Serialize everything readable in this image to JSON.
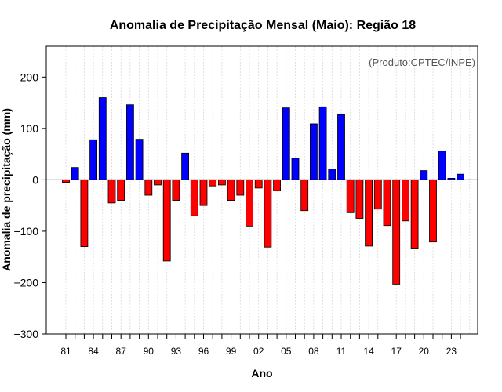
{
  "chart_data": {
    "type": "bar",
    "title": "Anomalia de Precipitação Mensal (Maio): Região 18",
    "xlabel": "Ano",
    "ylabel": "Anomalia de precipitação (mm)",
    "credit": "(Produto:CPTEC/INPE)",
    "ylim": [
      -300,
      260
    ],
    "yticks": [
      {
        "value": -300,
        "label": "−300"
      },
      {
        "value": -200,
        "label": "−200"
      },
      {
        "value": -100,
        "label": "−100"
      },
      {
        "value": 0,
        "label": "0"
      },
      {
        "value": 100,
        "label": "100"
      },
      {
        "value": 200,
        "label": "200"
      }
    ],
    "xticks": [
      {
        "year": 1981,
        "label": "81"
      },
      {
        "year": 1984,
        "label": "84"
      },
      {
        "year": 1987,
        "label": "87"
      },
      {
        "year": 1990,
        "label": "90"
      },
      {
        "year": 1993,
        "label": "93"
      },
      {
        "year": 1996,
        "label": "96"
      },
      {
        "year": 1999,
        "label": "99"
      },
      {
        "year": 2002,
        "label": "02"
      },
      {
        "year": 2005,
        "label": "05"
      },
      {
        "year": 2008,
        "label": "08"
      },
      {
        "year": 2011,
        "label": "11"
      },
      {
        "year": 2014,
        "label": "14"
      },
      {
        "year": 2017,
        "label": "17"
      },
      {
        "year": 2020,
        "label": "20"
      },
      {
        "year": 2023,
        "label": "23"
      }
    ],
    "positive_color": "#0000ff",
    "negative_color": "#ff0000",
    "series": [
      {
        "name": "Anomalia",
        "x": [
          1981,
          1982,
          1983,
          1984,
          1985,
          1986,
          1987,
          1988,
          1989,
          1990,
          1991,
          1992,
          1993,
          1994,
          1995,
          1996,
          1997,
          1998,
          1999,
          2000,
          2001,
          2002,
          2003,
          2004,
          2005,
          2006,
          2007,
          2008,
          2009,
          2010,
          2011,
          2012,
          2013,
          2014,
          2015,
          2016,
          2017,
          2018,
          2019,
          2020,
          2021,
          2022,
          2023,
          2024
        ],
        "values": [
          -5,
          24,
          -130,
          78,
          160,
          -45,
          -40,
          146,
          79,
          -30,
          -10,
          -158,
          -40,
          52,
          -70,
          -50,
          -12,
          -10,
          -40,
          -30,
          -90,
          -16,
          -131,
          -21,
          140,
          42,
          -60,
          109,
          142,
          21,
          127,
          -64,
          -75,
          -129,
          -57,
          -89,
          -203,
          -80,
          -133,
          18,
          -121,
          56,
          3,
          11
        ]
      }
    ]
  }
}
